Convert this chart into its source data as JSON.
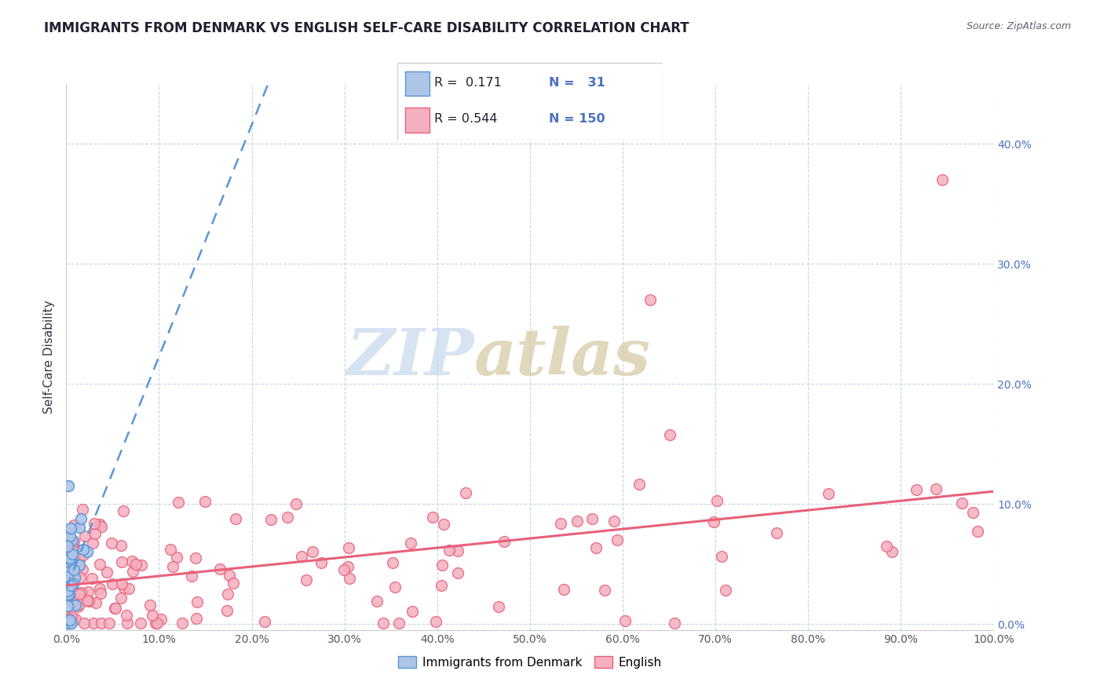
{
  "title": "IMMIGRANTS FROM DENMARK VS ENGLISH SELF-CARE DISABILITY CORRELATION CHART",
  "source": "Source: ZipAtlas.com",
  "ylabel": "Self-Care Disability",
  "xlim": [
    0.0,
    1.0
  ],
  "ylim": [
    -0.005,
    0.45
  ],
  "yticks": [
    0.0,
    0.1,
    0.2,
    0.3,
    0.4
  ],
  "xticks": [
    0.0,
    0.1,
    0.2,
    0.3,
    0.4,
    0.5,
    0.6,
    0.7,
    0.8,
    0.9,
    1.0
  ],
  "denmark_R": 0.171,
  "denmark_N": 31,
  "english_R": 0.544,
  "english_N": 150,
  "denmark_color": "#adc6e8",
  "denmark_edge_color": "#5a96d8",
  "denmark_trend_color": "#5a96d8",
  "english_color": "#f5b0c0",
  "english_edge_color": "#e8607a",
  "english_trend_color": "#e8607a",
  "watermark_zip_color": "#c8d8ec",
  "watermark_atlas_color": "#d4c8a0",
  "background_color": "#ffffff",
  "grid_color": "#c8d4e4",
  "title_color": "#202030",
  "source_color": "#606070",
  "ytick_color": "#4a72c4",
  "legend_labels": [
    "Immigrants from Denmark",
    "English"
  ]
}
